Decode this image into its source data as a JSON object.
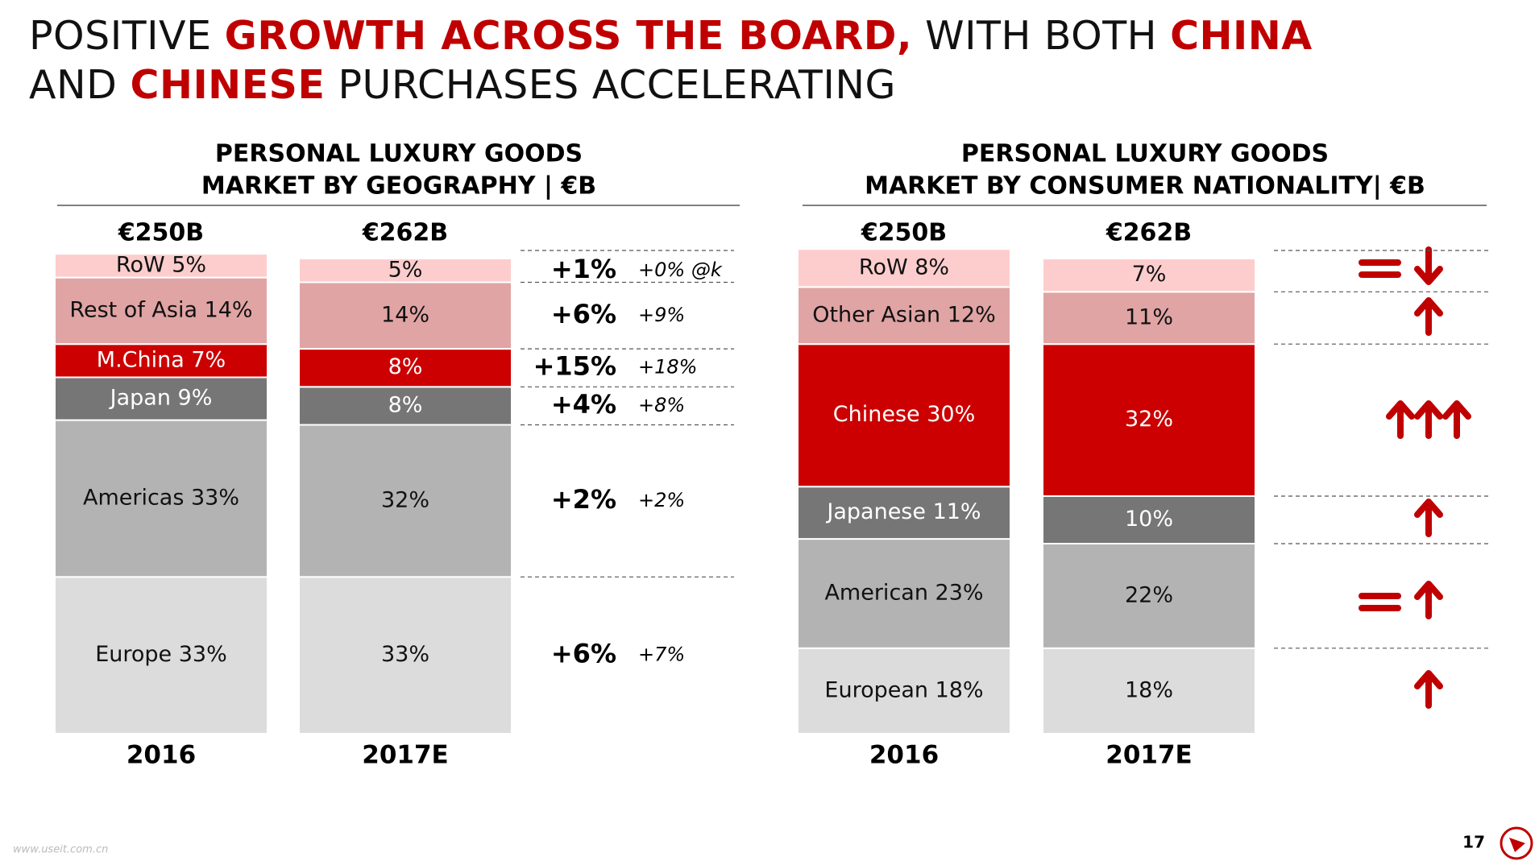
{
  "title": {
    "lines": [
      [
        {
          "text": "POSITIVE ",
          "color": "#111111"
        },
        {
          "text": "GROWTH ACROSS THE BOARD,",
          "color": "#c00000"
        },
        {
          "text": " WITH BOTH ",
          "color": "#111111"
        },
        {
          "text": "CHINA",
          "color": "#c00000"
        }
      ],
      [
        {
          "text": "AND ",
          "color": "#111111"
        },
        {
          "text": "CHINESE",
          "color": "#c00000"
        },
        {
          "text": " PURCHASES ACCELERATING",
          "color": "#111111"
        }
      ]
    ]
  },
  "chart_data": [
    {
      "type": "stacked_bar",
      "title": [
        "PERSONAL LUXURY GOODS",
        "MARKET BY GEOGRAPHY | €B"
      ],
      "categories": [
        "2016",
        "2017E"
      ],
      "totals": {
        "values": [
          250,
          262
        ],
        "value_labels": [
          "€250B",
          "€262B"
        ]
      },
      "series": [
        {
          "name": "Europe",
          "color": "#dcdcdc",
          "label_color": "#111111",
          "values": [
            33,
            33
          ],
          "value_labels": [
            "Europe 33%",
            "33%"
          ],
          "growth": {
            "value": 6,
            "label": "+6%"
          },
          "growth_note": {
            "value": 7,
            "label": "+7%"
          }
        },
        {
          "name": "Americas",
          "color": "#b3b3b3",
          "label_color": "#111111",
          "values": [
            33,
            32
          ],
          "value_labels": [
            "Americas 33%",
            "32%"
          ],
          "growth": {
            "value": 2,
            "label": "+2%"
          },
          "growth_note": {
            "value": 2,
            "label": "+2%"
          }
        },
        {
          "name": "Japan",
          "color": "#767676",
          "label_color": "#ffffff",
          "values": [
            9,
            8
          ],
          "value_labels": [
            "Japan 9%",
            "8%"
          ],
          "growth": {
            "value": 4,
            "label": "+4%"
          },
          "growth_note": {
            "value": 8,
            "label": "+8%"
          }
        },
        {
          "name": "M.China",
          "color": "#cc0000",
          "label_color": "#ffffff",
          "values": [
            7,
            8
          ],
          "value_labels": [
            "M.China 7%",
            "8%"
          ],
          "growth": {
            "value": 15,
            "label": "+15%"
          },
          "growth_note": {
            "value": 18,
            "label": "+18%"
          }
        },
        {
          "name": "Rest of Asia",
          "color": "#e0a4a4",
          "label_color": "#111111",
          "values": [
            14,
            14
          ],
          "value_labels": [
            "Rest of Asia 14%",
            "14%"
          ],
          "growth": {
            "value": 6,
            "label": "+6%"
          },
          "growth_note": {
            "value": 9,
            "label": "+9%"
          }
        },
        {
          "name": "RoW",
          "color": "#fdcdcd",
          "label_color": "#111111",
          "values": [
            5,
            5
          ],
          "value_labels": [
            "RoW 5%",
            "5%"
          ],
          "growth": {
            "value": 1,
            "label": "+1%"
          },
          "growth_note": {
            "value": 0,
            "label": "+0% @k"
          }
        }
      ]
    },
    {
      "type": "stacked_bar",
      "title": [
        "PERSONAL LUXURY GOODS",
        "MARKET BY CONSUMER  NATIONALITY| €B"
      ],
      "categories": [
        "2016",
        "2017E"
      ],
      "totals": {
        "values": [
          250,
          262
        ],
        "value_labels": [
          "€250B",
          "€262B"
        ]
      },
      "series": [
        {
          "name": "European",
          "color": "#dcdcdc",
          "label_color": "#111111",
          "values": [
            18,
            18
          ],
          "value_labels": [
            "European 18%",
            "18%"
          ]
        },
        {
          "name": "American",
          "color": "#b3b3b3",
          "label_color": "#111111",
          "values": [
            23,
            22
          ],
          "value_labels": [
            "American 23%",
            "22%"
          ]
        },
        {
          "name": "Japanese",
          "color": "#767676",
          "label_color": "#ffffff",
          "values": [
            11,
            10
          ],
          "value_labels": [
            "Japanese 11%",
            "10%"
          ]
        },
        {
          "name": "Chinese",
          "color": "#cc0000",
          "label_color": "#ffffff",
          "values": [
            30,
            32
          ],
          "value_labels": [
            "Chinese 30%",
            "32%"
          ]
        },
        {
          "name": "Other Asian",
          "color": "#e0a4a4",
          "label_color": "#111111",
          "values": [
            12,
            11
          ],
          "value_labels": [
            "Other Asian 12%",
            "11%"
          ]
        },
        {
          "name": "RoW",
          "color": "#fdcdcd",
          "label_color": "#111111",
          "values": [
            8,
            7
          ],
          "value_labels": [
            "RoW 8%",
            "7%"
          ]
        }
      ]
    }
  ],
  "page_number": "17",
  "watermark": "www.useit.com.cn"
}
